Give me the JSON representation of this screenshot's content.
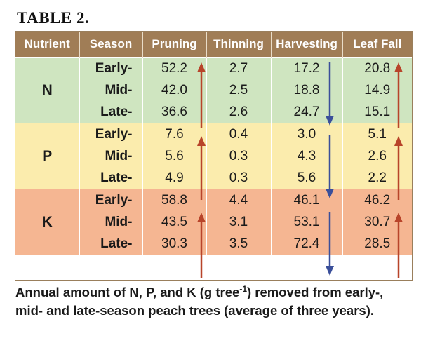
{
  "title": "TABLE 2.",
  "headers": [
    "Nutrient",
    "Season",
    "Pruning",
    "Thinning",
    "Harvesting",
    "Leaf Fall"
  ],
  "groups": [
    {
      "nutrient": "N",
      "rows": [
        {
          "season": "Early-",
          "values": [
            "52.2",
            "2.7",
            "17.2",
            "20.8"
          ]
        },
        {
          "season": "Mid-",
          "values": [
            "42.0",
            "2.5",
            "18.8",
            "14.9"
          ]
        },
        {
          "season": "Late-",
          "values": [
            "36.6",
            "2.6",
            "24.7",
            "15.1"
          ]
        }
      ]
    },
    {
      "nutrient": "P",
      "rows": [
        {
          "season": "Early-",
          "values": [
            "7.6",
            "0.4",
            "3.0",
            "5.1"
          ]
        },
        {
          "season": "Mid-",
          "values": [
            "5.6",
            "0.3",
            "4.3",
            "2.6"
          ]
        },
        {
          "season": "Late-",
          "values": [
            "4.9",
            "0.3",
            "5.6",
            "2.2"
          ]
        }
      ]
    },
    {
      "nutrient": "K",
      "rows": [
        {
          "season": "Early-",
          "values": [
            "58.8",
            "4.4",
            "46.1",
            "46.2"
          ]
        },
        {
          "season": "Mid-",
          "values": [
            "43.5",
            "3.1",
            "53.1",
            "30.7"
          ]
        },
        {
          "season": "Late-",
          "values": [
            "30.3",
            "3.5",
            "72.4",
            "28.5"
          ]
        }
      ]
    }
  ],
  "caption": {
    "before_sup": "Annual amount of N, P, and K (g tree",
    "sup": "-1",
    "after_sup": ") removed from early-, mid- and late-season peach trees (average of three years)."
  },
  "colors": {
    "header": "#a07d56",
    "group_N": "#cfe5c0",
    "group_P": "#fbecad",
    "group_K": "#f5b692",
    "arrow_up": "#b8442a",
    "arrow_down": "#3a4f9a"
  },
  "arrows": {
    "pruning": "up-arrow",
    "harvesting": "down-arrow",
    "leaf_fall": "up-arrow"
  }
}
